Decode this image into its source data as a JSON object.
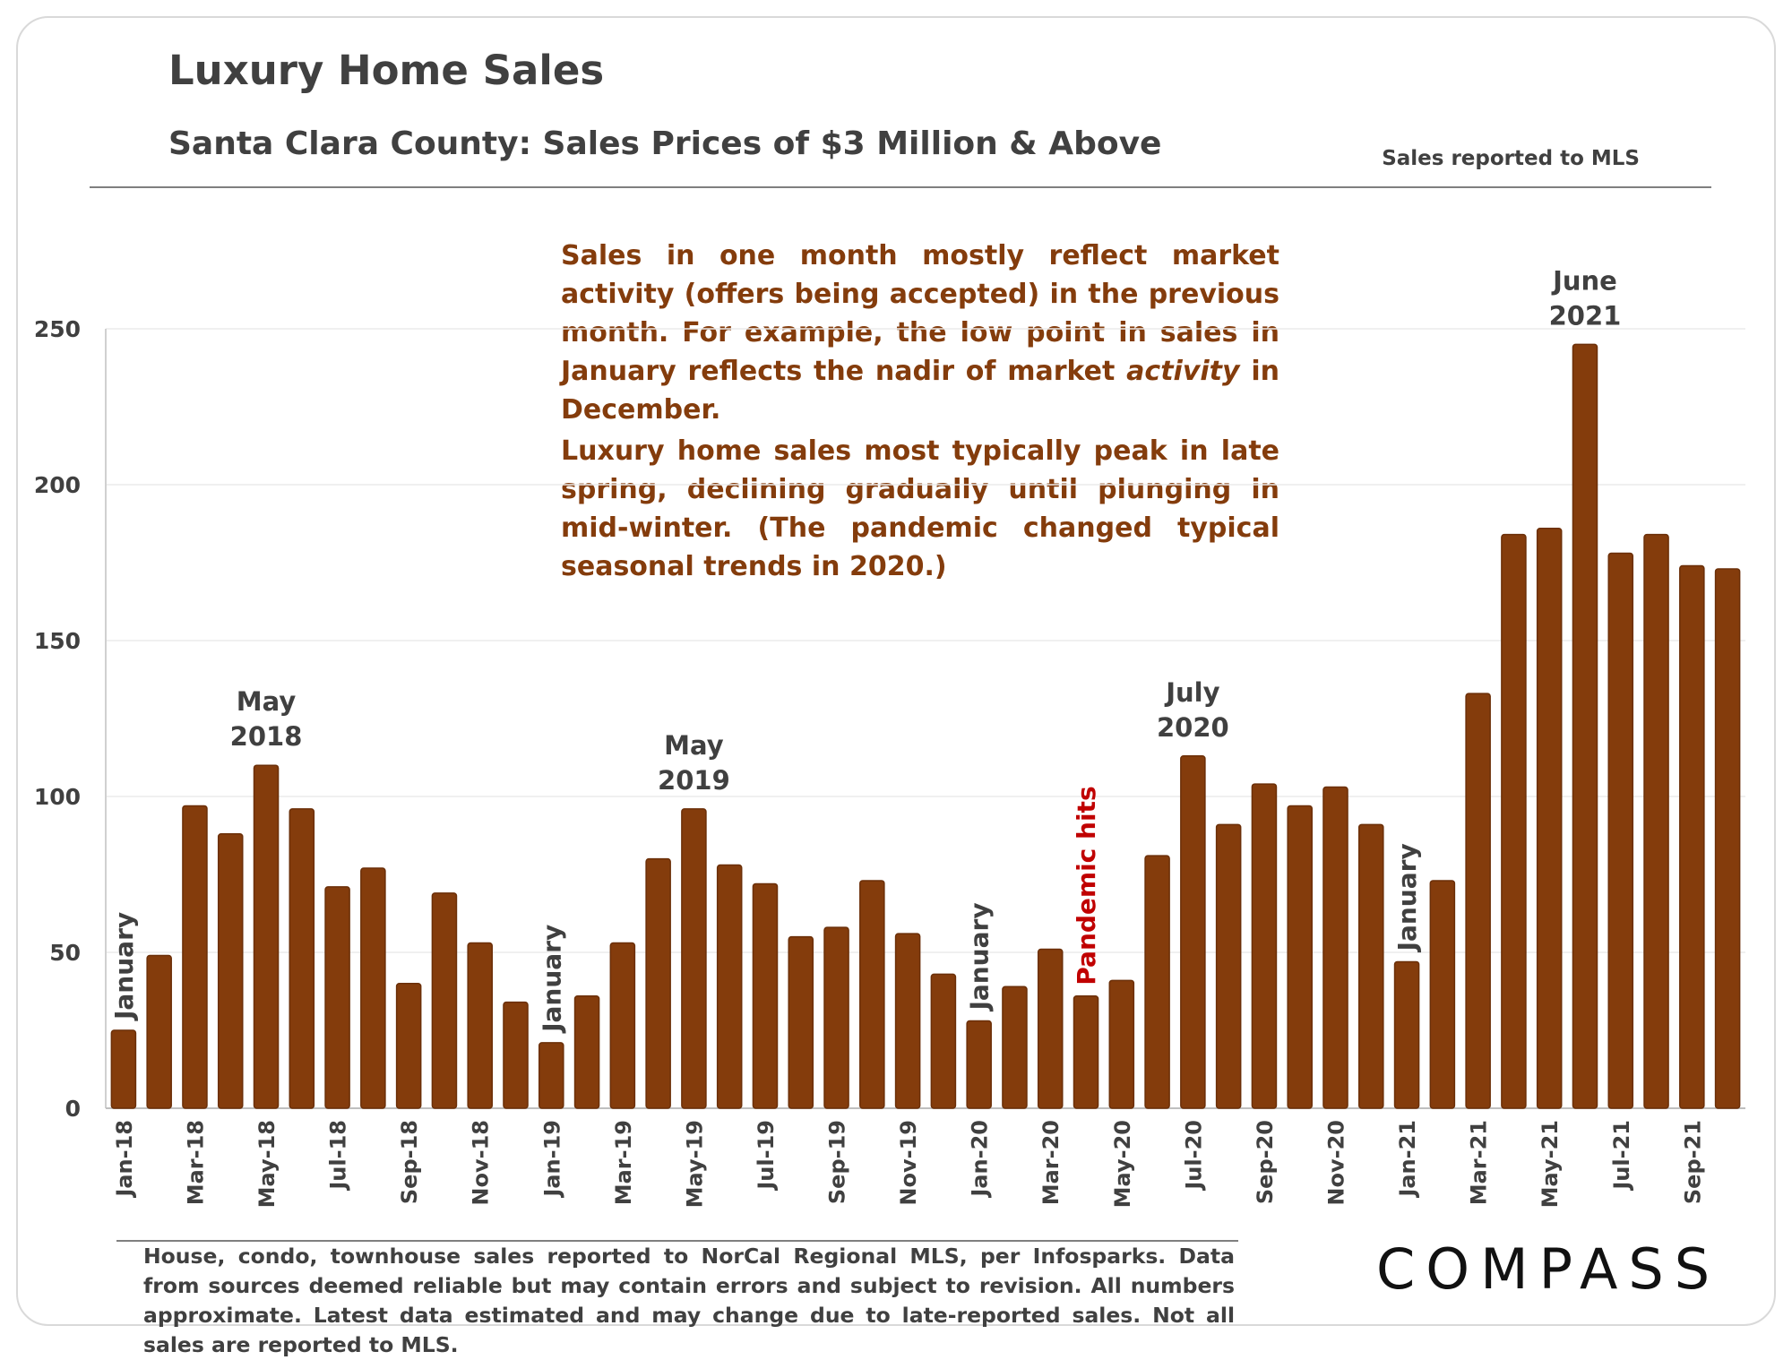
{
  "header": {
    "title": "Luxury Home Sales",
    "subtitle": "Santa Clara County: Sales Prices of $3 Million & Above",
    "source_note": "Sales reported to MLS"
  },
  "annotation": {
    "paragraph1": "Sales in one month mostly reflect market activity (offers being accepted) in the previous month. For example, the low point in sales in January reflects the nadir of market",
    "paragraph1_italic": "activity",
    "paragraph1_end": " in December.",
    "paragraph2": "Luxury home sales most typically peak in late spring, declining gradually until plunging in mid-winter. (The pandemic changed typical seasonal trends in 2020.)"
  },
  "footer": {
    "note": "House, condo, townhouse sales reported to NorCal Regional MLS, per Infosparks. Data from sources deemed reliable but may contain errors and subject to revision. All numbers approximate. Latest data estimated and may change due to late-reported sales. Not all sales are reported to MLS.",
    "logo": "COMPASS"
  },
  "colors": {
    "bar": "#843c0c",
    "annotation_text": "#843c0c",
    "pandemic_label": "#c00000",
    "label_text": "#404040"
  },
  "chart_data": {
    "type": "bar",
    "title": "Luxury Home Sales",
    "subtitle": "Santa Clara County: Sales Prices of $3 Million & Above",
    "ylim": [
      0,
      250
    ],
    "yticks": [
      0,
      50,
      100,
      150,
      200,
      250
    ],
    "grid": true,
    "categories": [
      "Jan-18",
      "Feb-18",
      "Mar-18",
      "Apr-18",
      "May-18",
      "Jun-18",
      "Jul-18",
      "Aug-18",
      "Sep-18",
      "Oct-18",
      "Nov-18",
      "Dec-18",
      "Jan-19",
      "Feb-19",
      "Mar-19",
      "Apr-19",
      "May-19",
      "Jun-19",
      "Jul-19",
      "Aug-19",
      "Sep-19",
      "Oct-19",
      "Nov-19",
      "Dec-19",
      "Jan-20",
      "Feb-20",
      "Mar-20",
      "Apr-20",
      "May-20",
      "Jun-20",
      "Jul-20",
      "Aug-20",
      "Sep-20",
      "Oct-20",
      "Nov-20",
      "Dec-20",
      "Jan-21",
      "Feb-21",
      "Mar-21",
      "Apr-21",
      "May-21",
      "Jun-21",
      "Jul-21",
      "Aug-21",
      "Sep-21",
      "Oct-21"
    ],
    "xtick_labels": [
      "Jan-18",
      "Mar-18",
      "May-18",
      "Jul-18",
      "Sep-18",
      "Nov-18",
      "Jan-19",
      "Mar-19",
      "May-19",
      "Jul-19",
      "Sep-19",
      "Nov-19",
      "Jan-20",
      "Mar-20",
      "May-20",
      "Jul-20",
      "Sep-20",
      "Nov-20",
      "Jan-21",
      "Mar-21",
      "May-21",
      "Jul-21",
      "Sep-21"
    ],
    "values": [
      25,
      49,
      97,
      88,
      110,
      96,
      71,
      77,
      40,
      69,
      53,
      34,
      21,
      36,
      53,
      80,
      96,
      78,
      72,
      55,
      58,
      73,
      56,
      43,
      28,
      39,
      51,
      36,
      41,
      81,
      113,
      91,
      104,
      97,
      103,
      91,
      47,
      73,
      133,
      184,
      186,
      245,
      178,
      184,
      174,
      173
    ],
    "bar_annotations": [
      {
        "index": 0,
        "text": "January",
        "orientation": "vertical"
      },
      {
        "index": 12,
        "text": "January",
        "orientation": "vertical"
      },
      {
        "index": 24,
        "text": "January",
        "orientation": "vertical"
      },
      {
        "index": 36,
        "text": "January",
        "orientation": "vertical"
      },
      {
        "index": 27,
        "text": "Pandemic hits",
        "orientation": "vertical",
        "highlight": true
      },
      {
        "index": 4,
        "text": [
          "May",
          "2018"
        ],
        "orientation": "horizontal"
      },
      {
        "index": 16,
        "text": [
          "May",
          "2019"
        ],
        "orientation": "horizontal"
      },
      {
        "index": 30,
        "text": [
          "July",
          "2020"
        ],
        "orientation": "horizontal"
      },
      {
        "index": 41,
        "text": [
          "June",
          "2021"
        ],
        "orientation": "horizontal"
      }
    ]
  }
}
